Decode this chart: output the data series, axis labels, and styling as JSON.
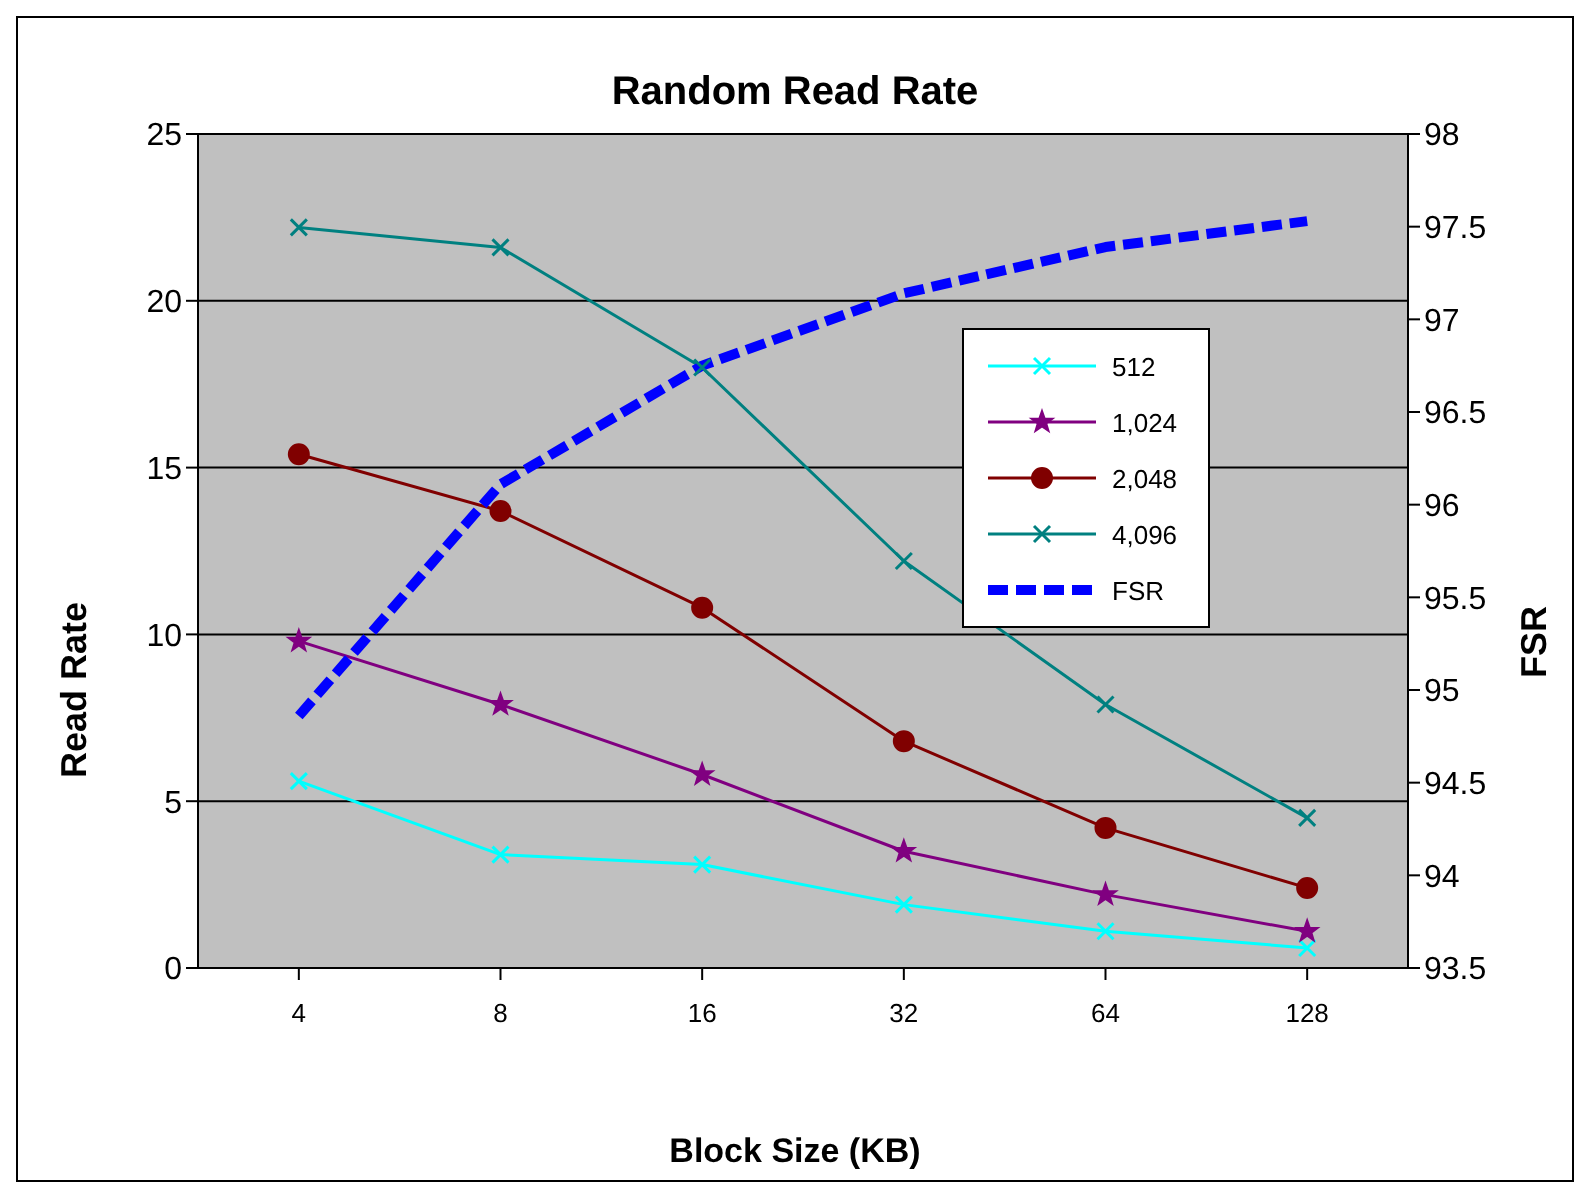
{
  "chart_data": {
    "type": "line",
    "title": "Random Read Rate",
    "xlabel": "Block Size (KB)",
    "ylabel": "Read Rate",
    "y2label": "FSR",
    "categories": [
      "4",
      "8",
      "16",
      "32",
      "64",
      "128"
    ],
    "series": [
      {
        "name": "512",
        "color": "#00ffff",
        "marker": "cross",
        "values": [
          5.6,
          3.4,
          3.1,
          1.9,
          1.1,
          0.6
        ]
      },
      {
        "name": "1,024",
        "color": "#800080",
        "marker": "star",
        "values": [
          9.8,
          7.9,
          5.8,
          3.5,
          2.2,
          1.1
        ]
      },
      {
        "name": "2,048",
        "color": "#800000",
        "marker": "circle",
        "values": [
          15.4,
          13.7,
          10.8,
          6.8,
          4.2,
          2.4
        ]
      },
      {
        "name": "4,096",
        "color": "#008080",
        "marker": "cross",
        "values": [
          22.2,
          21.6,
          18.0,
          12.2,
          7.9,
          4.5
        ]
      },
      {
        "name": "FSR",
        "color": "#0000ff",
        "marker": "none",
        "line_style": "dashed",
        "axis": "y2",
        "values": [
          94.86,
          96.11,
          96.75,
          97.14,
          97.39,
          97.53
        ]
      }
    ],
    "ylim": [
      0,
      25
    ],
    "yticks": [
      0,
      5,
      10,
      15,
      20,
      25
    ],
    "y2lim": [
      93.5,
      98
    ],
    "y2ticks": [
      93.5,
      94,
      94.5,
      95,
      95.5,
      96,
      96.5,
      97,
      97.5,
      98
    ],
    "grid": "y",
    "legend": "right"
  }
}
